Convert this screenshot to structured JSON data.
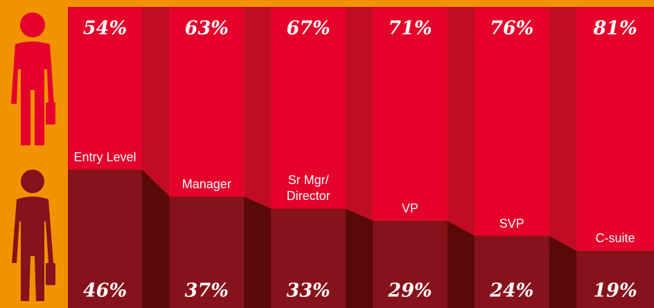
{
  "chart_data": {
    "type": "stacked_bar_100",
    "categories": [
      "Entry Level",
      "Manager",
      "Sr Mgr/ Director",
      "VP",
      "SVP",
      "C-suite"
    ],
    "series": [
      {
        "color": "#e4002b",
        "values": [
          54,
          63,
          67,
          71,
          76,
          81
        ],
        "value_labels": [
          "54%",
          "63%",
          "67%",
          "71%",
          "76%",
          "81%"
        ]
      },
      {
        "color": "#86121b",
        "values": [
          46,
          37,
          33,
          29,
          24,
          19
        ],
        "value_labels": [
          "46%",
          "37%",
          "33%",
          "29%",
          "24%",
          "19%"
        ]
      }
    ],
    "ylim": [
      0,
      100
    ]
  }
}
